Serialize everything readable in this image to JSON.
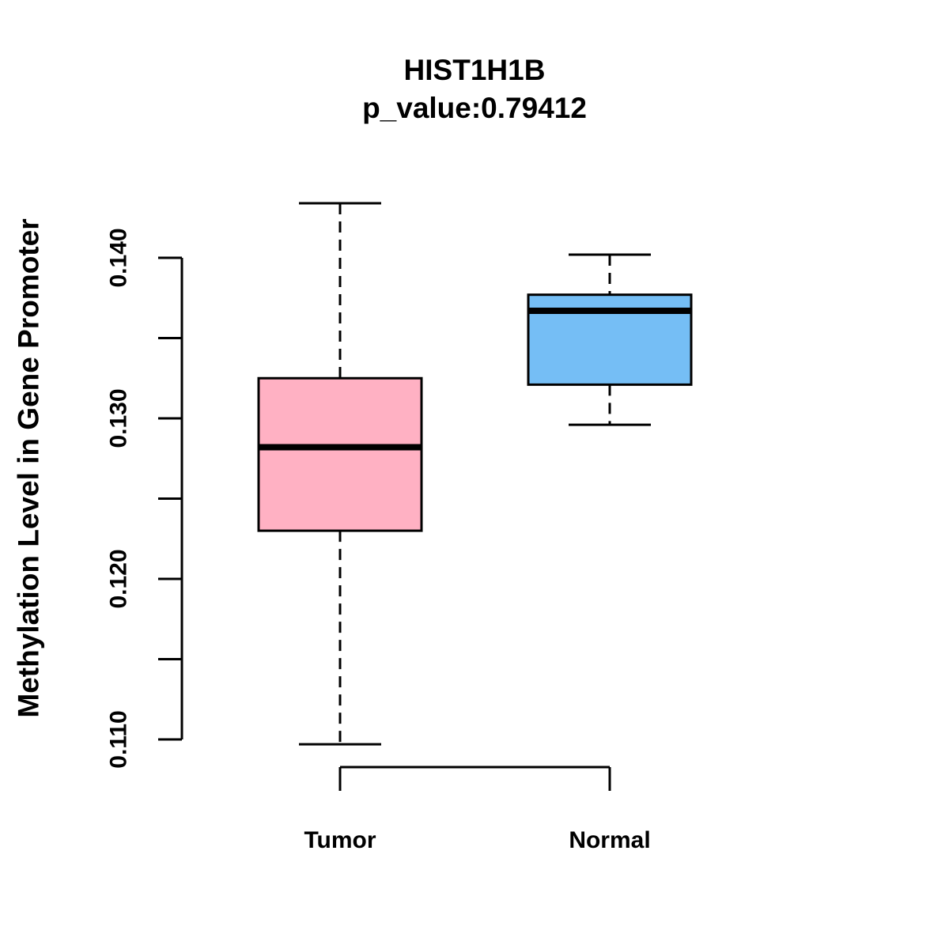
{
  "chart_data": {
    "type": "boxplot",
    "title": "HIST1H1B",
    "subtitle": "p_value:0.79412",
    "p_value": 0.79412,
    "ylabel": "Methylation Level in Gene Promoter",
    "xlabel": "",
    "categories": [
      "Tumor",
      "Normal"
    ],
    "series": [
      {
        "name": "Tumor",
        "color": "#FFB1C3",
        "lower_whisker": 0.1097,
        "q1": 0.123,
        "median": 0.1282,
        "q3": 0.1325,
        "upper_whisker": 0.1434
      },
      {
        "name": "Normal",
        "color": "#75BEF5",
        "lower_whisker": 0.1296,
        "q1": 0.1321,
        "median": 0.1367,
        "q3": 0.1377,
        "upper_whisker": 0.1402
      }
    ],
    "y_axis": {
      "min": 0.11,
      "max": 0.14,
      "tick_step": 0.005,
      "labeled_values": [
        0.11,
        0.12,
        0.13,
        0.14
      ],
      "labeled_ticks": [
        "0.110",
        "0.120",
        "0.130",
        "0.140"
      ]
    },
    "layout_hints": {
      "grid": "off",
      "legend": "none",
      "whisker_style": "dashed",
      "background": "#ffffff",
      "line_color": "#000000"
    }
  }
}
